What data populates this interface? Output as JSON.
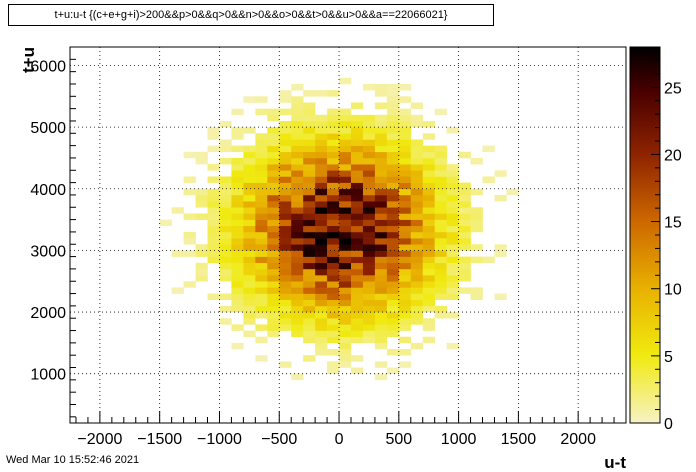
{
  "title": "t+u:u-t {(c+e+g+i)>200&&p>0&&q>0&&n>0&&o>0&&t>0&&u>0&&a==22066021}",
  "footer_timestamp": "Wed Mar 10 15:52:46 2021",
  "chart_data": {
    "type": "heatmap",
    "xlabel": "u-t",
    "ylabel": "t+u",
    "xlim": [
      -2250,
      2400
    ],
    "ylim": [
      200,
      6300
    ],
    "x_ticks": [
      -2000,
      -1500,
      -1000,
      -500,
      0,
      500,
      1000,
      1500,
      2000
    ],
    "x_tick_labels": [
      "−2000",
      "−1500",
      "−1000",
      "−500",
      "0",
      "500",
      "1000",
      "1500",
      "2000"
    ],
    "y_ticks": [
      1000,
      2000,
      3000,
      4000,
      5000,
      6000
    ],
    "y_tick_labels": [
      "1000",
      "2000",
      "3000",
      "4000",
      "5000",
      "6000"
    ],
    "grid": true,
    "colorbar": {
      "min": 0,
      "max": 28,
      "ticks": [
        0,
        5,
        10,
        15,
        20,
        25
      ],
      "tick_labels": [
        "0",
        "5",
        "10",
        "15",
        "20",
        "25"
      ]
    },
    "density_model": {
      "center_x": 0,
      "center_y": 3350,
      "sigma_x": 520,
      "sigma_y": 900,
      "peak": 25,
      "bin_width": 100,
      "bin_height": 100,
      "region_x": [
        -2000,
        2050
      ],
      "region_y": [
        800,
        5750
      ]
    }
  }
}
